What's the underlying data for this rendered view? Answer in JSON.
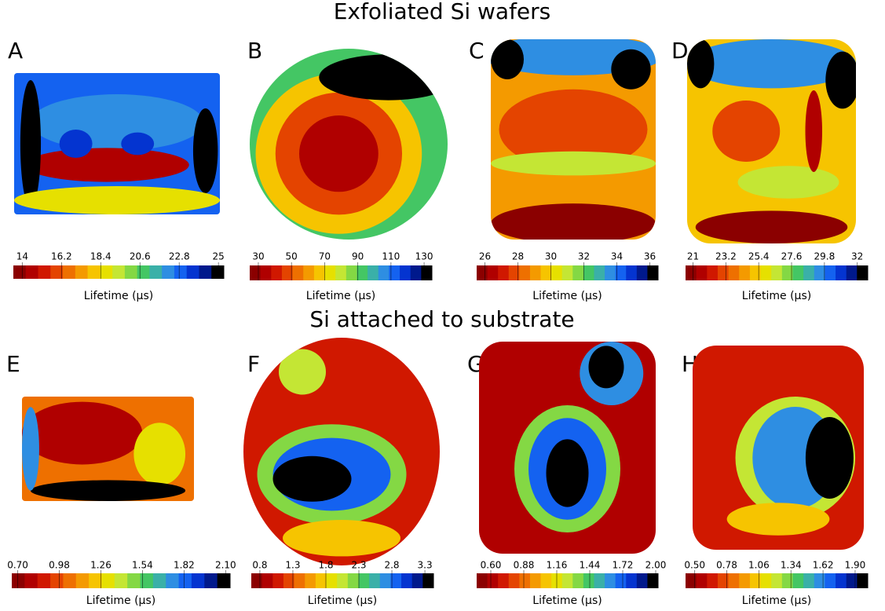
{
  "sections": [
    "Exfoliated Si wafers",
    "Si attached to substrate"
  ],
  "colormap": [
    "#8b0000",
    "#b00000",
    "#d01800",
    "#e44400",
    "#ee7000",
    "#f49a00",
    "#f6c400",
    "#e6e000",
    "#c4e634",
    "#84d844",
    "#44c664",
    "#3ab0a8",
    "#2e8ee2",
    "#1462f0",
    "#0434d0",
    "#00198c",
    "#000000"
  ],
  "chart_data": [
    {
      "type": "heatmap",
      "label": "A",
      "colorbar_label": "Lifetime (µs)",
      "clim": [
        13.5,
        25.3
      ],
      "ticks": [
        14,
        16.2,
        18.4,
        20.6,
        22.8,
        25
      ]
    },
    {
      "type": "heatmap",
      "label": "B",
      "colorbar_label": "Lifetime (µs)",
      "clim": [
        24.8,
        134.7
      ],
      "ticks": [
        30,
        50,
        70,
        90,
        110,
        130
      ]
    },
    {
      "type": "heatmap",
      "label": "C",
      "colorbar_label": "Lifetime (µs)",
      "clim": [
        25.5,
        36.5
      ],
      "ticks": [
        26,
        28,
        30,
        32,
        34,
        36
      ]
    },
    {
      "type": "heatmap",
      "label": "D",
      "colorbar_label": "Lifetime (µs)",
      "clim": [
        20.5,
        32.7
      ],
      "ticks": [
        21,
        23.2,
        25.4,
        27.6,
        29.8,
        32
      ]
    },
    {
      "type": "heatmap",
      "label": "E",
      "colorbar_label": "Lifetime (µs)",
      "clim": [
        0.66,
        2.13
      ],
      "ticks": [
        {
          "value": 0.7,
          "label": "0.70"
        },
        0.98,
        1.26,
        1.54,
        1.82,
        {
          "value": 2.1,
          "label": "2.10"
        }
      ]
    },
    {
      "type": "heatmap",
      "label": "F",
      "colorbar_label": "Lifetime (µs)",
      "clim": [
        0.67,
        3.43
      ],
      "ticks": [
        0.8,
        1.3,
        1.8,
        2.3,
        2.8,
        3.3
      ]
    },
    {
      "type": "heatmap",
      "label": "G",
      "colorbar_label": "Lifetime (µs)",
      "clim": [
        0.48,
        2.02
      ],
      "ticks": [
        {
          "value": 0.6,
          "label": "0.60"
        },
        0.88,
        1.16,
        1.44,
        1.72,
        {
          "value": 2,
          "label": "2.00"
        }
      ]
    },
    {
      "type": "heatmap",
      "label": "H",
      "colorbar_label": "Lifetime (µs)",
      "clim": [
        0.42,
        2.01
      ],
      "ticks": [
        {
          "value": 0.5,
          "label": "0.50"
        },
        0.78,
        1.06,
        1.34,
        1.62,
        {
          "value": 1.9,
          "label": "1.90"
        }
      ]
    }
  ]
}
